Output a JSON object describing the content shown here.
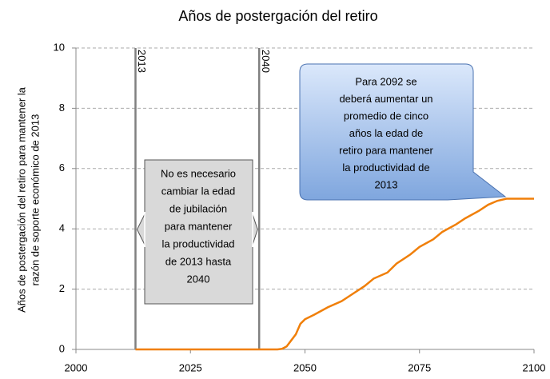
{
  "chart_data": {
    "type": "line",
    "title": "Años de postergación del retiro",
    "ylabel": [
      "Años de postergación del retiro para mantener la",
      "razón de soporte económico de 2013"
    ],
    "x": [
      2013,
      2020,
      2030,
      2040,
      2044,
      2045,
      2046,
      2047,
      2048,
      2049,
      2050,
      2052,
      2055,
      2058,
      2060,
      2063,
      2065,
      2068,
      2070,
      2073,
      2075,
      2078,
      2080,
      2083,
      2085,
      2088,
      2090,
      2092,
      2094,
      2097,
      2100
    ],
    "values": [
      0,
      0,
      0,
      0,
      0,
      0.02,
      0.1,
      0.3,
      0.5,
      0.85,
      1.0,
      1.15,
      1.4,
      1.6,
      1.8,
      2.1,
      2.35,
      2.55,
      2.85,
      3.15,
      3.4,
      3.65,
      3.9,
      4.15,
      4.35,
      4.6,
      4.8,
      4.93,
      5.0,
      5.0,
      5.0
    ],
    "color": "#f07f09",
    "xlim": [
      2000,
      2100
    ],
    "xticks": [
      2000,
      2025,
      2050,
      2075,
      2100
    ],
    "ylim": [
      0,
      10
    ],
    "yticks": [
      0,
      2,
      4,
      6,
      8,
      10
    ],
    "grid": true,
    "vlines": [
      2013,
      2040
    ],
    "box_text": [
      "No es necesario",
      "cambiar la edad",
      "de jubilación",
      "para mantener",
      "la productividad",
      "de 2013 hasta",
      "2040"
    ],
    "callout_text": [
      "Para 2092 se",
      "deberá aumentar un",
      "promedio de cinco",
      "años la edad de",
      "retiro para mantener",
      "la productividad  de",
      "2013"
    ]
  }
}
